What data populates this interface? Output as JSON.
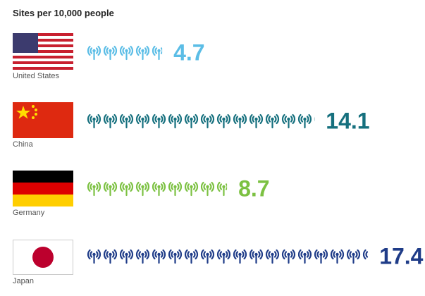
{
  "chart_data": {
    "type": "pictogram",
    "title": "Sites per 10,000 people",
    "categories": [
      "United States",
      "China",
      "Germany",
      "Japan"
    ],
    "values": [
      4.7,
      14.1,
      8.7,
      17.4
    ],
    "colors": [
      "#5bbde6",
      "#16707e",
      "#7cc142",
      "#1f3c88"
    ]
  }
}
